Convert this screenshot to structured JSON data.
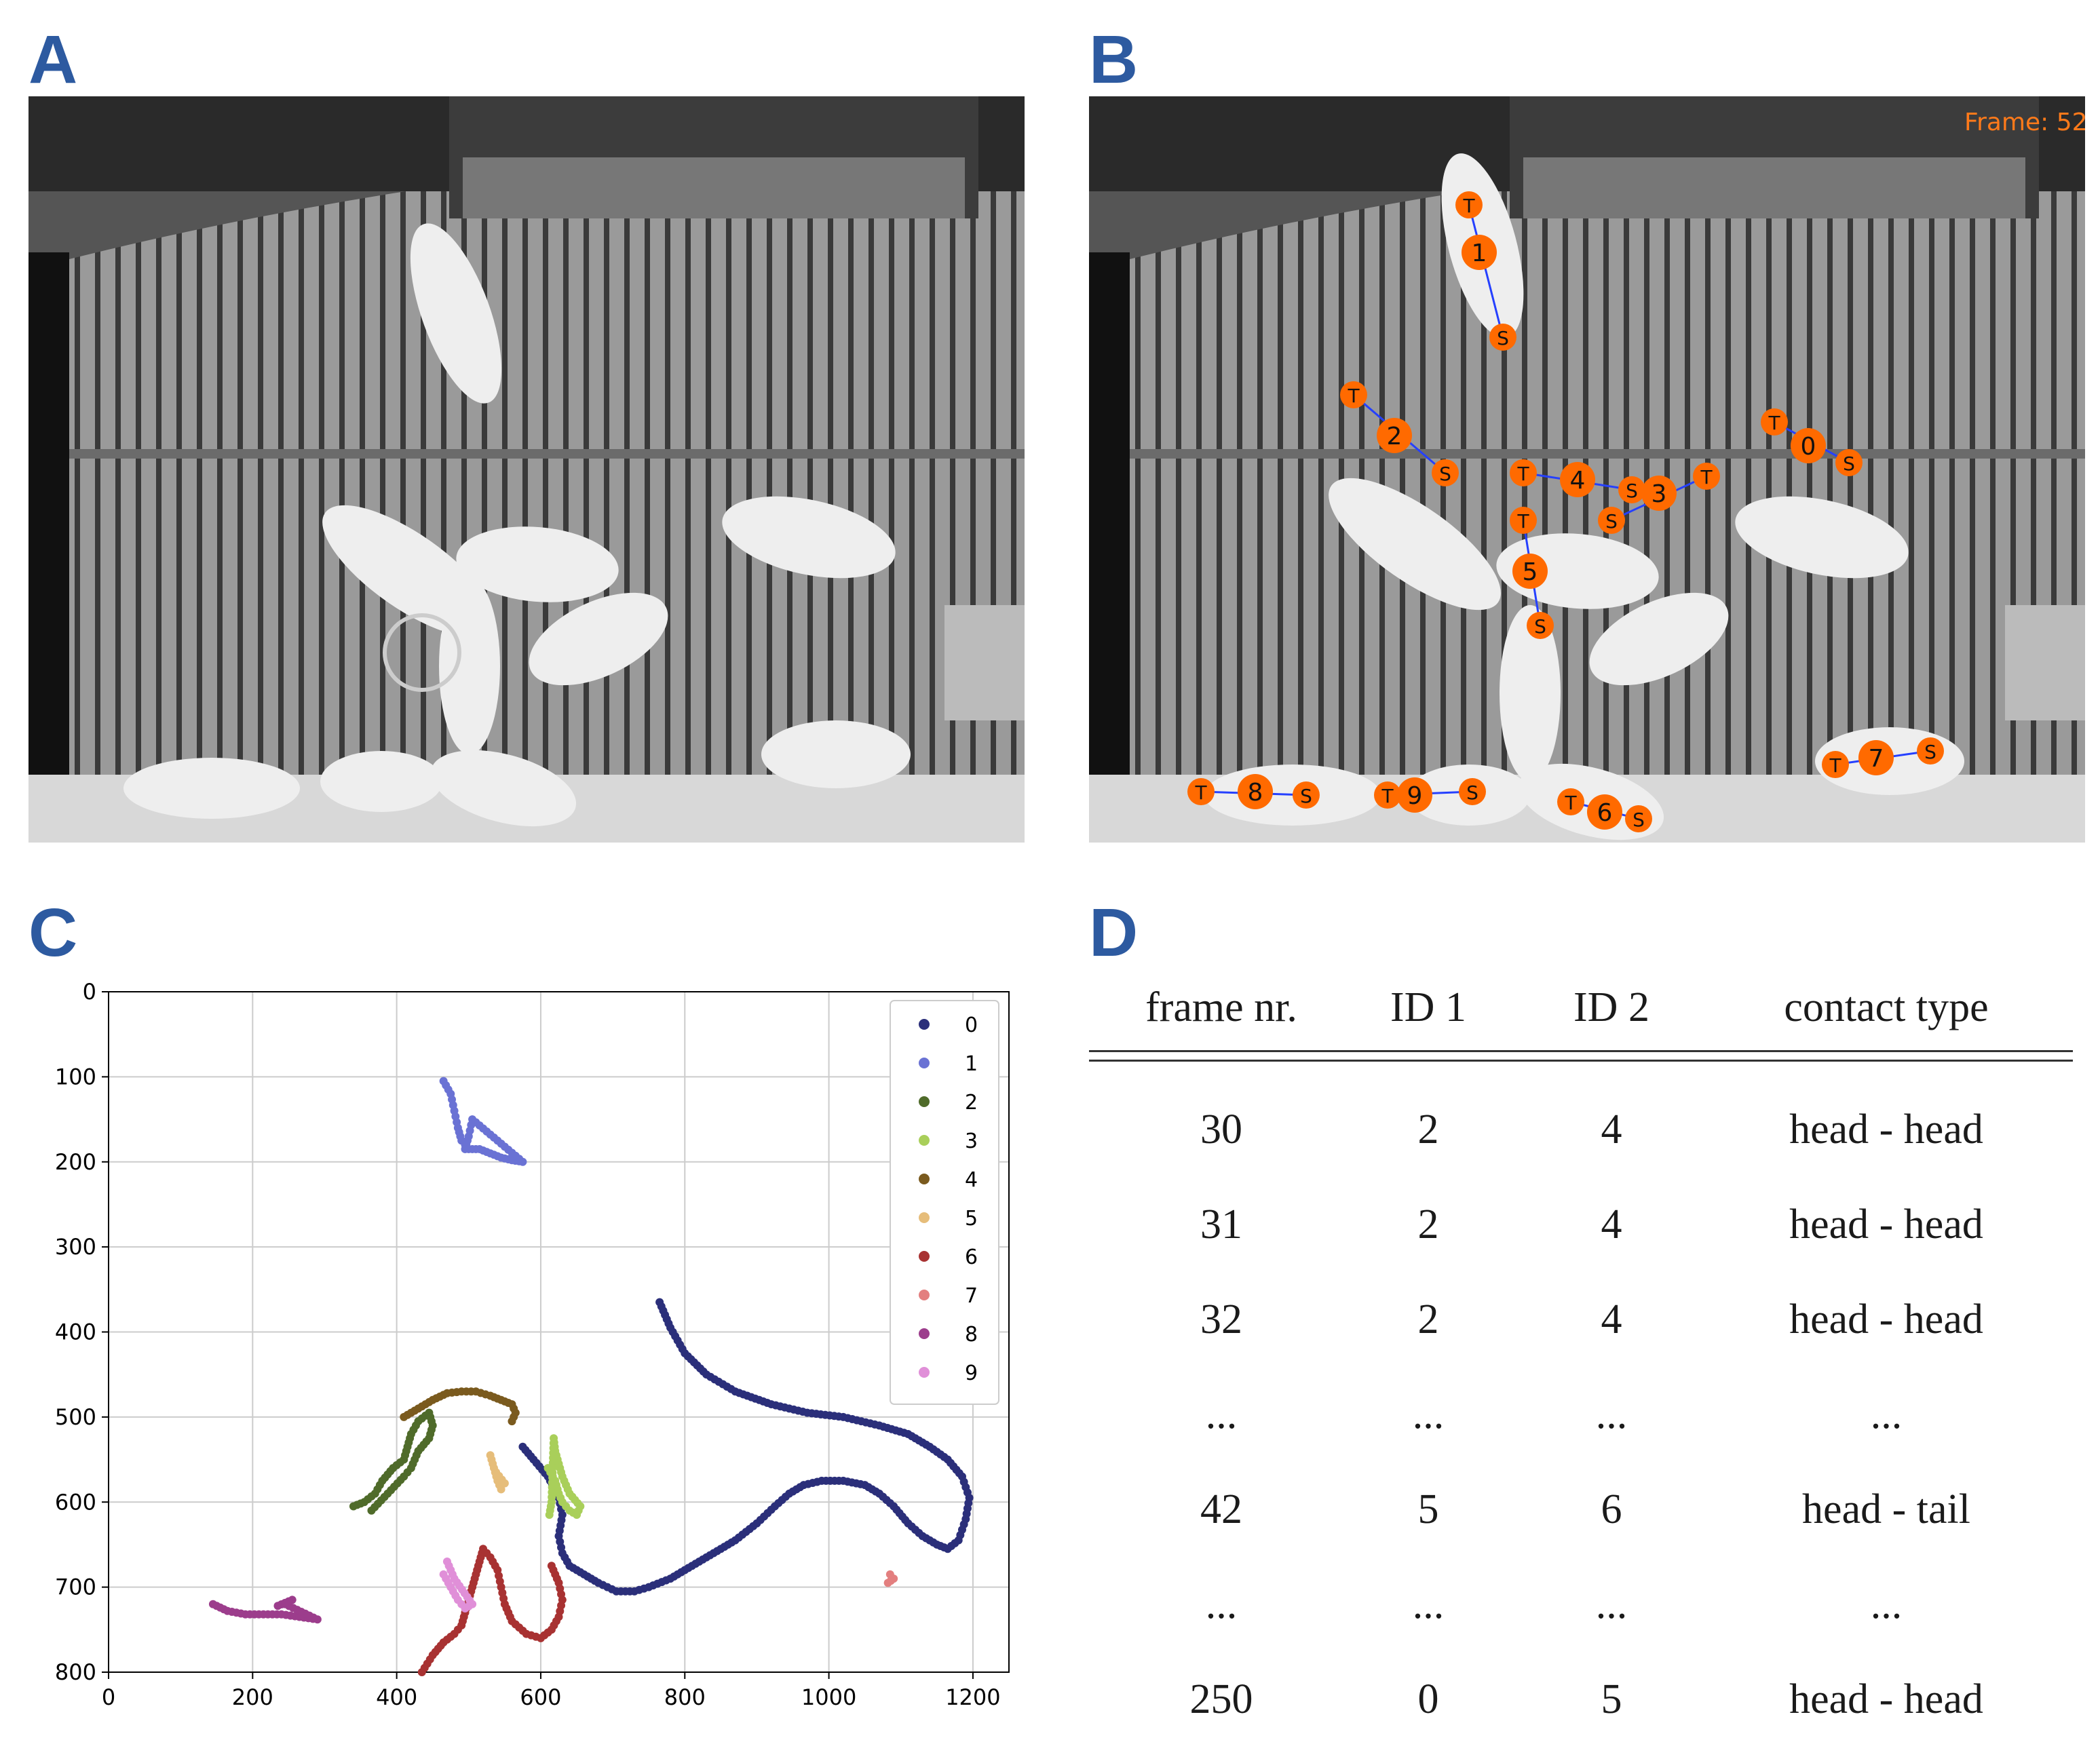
{
  "panels": {
    "a": {
      "label": "A"
    },
    "b": {
      "label": "B",
      "frame_text": "Frame: 52"
    },
    "c": {
      "label": "C"
    },
    "d": {
      "label": "D"
    }
  },
  "pigs_b": [
    {
      "id": "1",
      "s": "S",
      "t": "T"
    },
    {
      "id": "2",
      "s": "S",
      "t": "T"
    },
    {
      "id": "0",
      "s": "S",
      "t": "T"
    },
    {
      "id": "4",
      "s": "S",
      "t": "T"
    },
    {
      "id": "3",
      "s": "S",
      "t": "T"
    },
    {
      "id": "5",
      "s": "S",
      "t": "T"
    },
    {
      "id": "8",
      "s": "S",
      "t": "T"
    },
    {
      "id": "9",
      "s": "S",
      "t": "T"
    },
    {
      "id": "6",
      "s": "S",
      "t": "T"
    },
    {
      "id": "7",
      "s": "S",
      "t": "T"
    }
  ],
  "chart_data": {
    "type": "scatter",
    "xlim": [
      0,
      1250
    ],
    "ylim": [
      800,
      0
    ],
    "xticks": [
      "0",
      "200",
      "400",
      "600",
      "800",
      "1000",
      "1200"
    ],
    "yticks": [
      "0",
      "100",
      "200",
      "300",
      "400",
      "500",
      "600",
      "700",
      "800"
    ],
    "grid": true,
    "legend_position": "top-right",
    "series": [
      {
        "name": "0",
        "color": "#2b2f7a",
        "points": [
          [
            765,
            365
          ],
          [
            780,
            395
          ],
          [
            800,
            425
          ],
          [
            830,
            450
          ],
          [
            870,
            470
          ],
          [
            920,
            485
          ],
          [
            970,
            495
          ],
          [
            1020,
            500
          ],
          [
            1070,
            510
          ],
          [
            1110,
            520
          ],
          [
            1140,
            535
          ],
          [
            1165,
            550
          ],
          [
            1185,
            570
          ],
          [
            1195,
            595
          ],
          [
            1190,
            620
          ],
          [
            1180,
            645
          ],
          [
            1165,
            655
          ],
          [
            1150,
            650
          ],
          [
            1130,
            640
          ],
          [
            1110,
            625
          ],
          [
            1090,
            605
          ],
          [
            1070,
            590
          ],
          [
            1050,
            580
          ],
          [
            1020,
            575
          ],
          [
            990,
            575
          ],
          [
            965,
            580
          ],
          [
            945,
            590
          ],
          [
            925,
            605
          ],
          [
            900,
            625
          ],
          [
            870,
            645
          ],
          [
            840,
            660
          ],
          [
            810,
            675
          ],
          [
            780,
            690
          ],
          [
            750,
            700
          ],
          [
            730,
            705
          ],
          [
            705,
            705
          ],
          [
            680,
            695
          ],
          [
            660,
            685
          ],
          [
            640,
            675
          ],
          [
            630,
            660
          ],
          [
            625,
            640
          ],
          [
            630,
            615
          ],
          [
            625,
            595
          ],
          [
            610,
            570
          ],
          [
            590,
            550
          ],
          [
            575,
            535
          ]
        ]
      },
      {
        "name": "1",
        "color": "#6a72d4",
        "points": [
          [
            465,
            105
          ],
          [
            475,
            120
          ],
          [
            480,
            140
          ],
          [
            485,
            160
          ],
          [
            490,
            175
          ],
          [
            500,
            185
          ],
          [
            515,
            185
          ],
          [
            530,
            190
          ],
          [
            545,
            195
          ],
          [
            560,
            198
          ],
          [
            575,
            200
          ],
          [
            505,
            150
          ],
          [
            500,
            170
          ],
          [
            495,
            185
          ]
        ]
      },
      {
        "name": "2",
        "color": "#4f6b2a",
        "points": [
          [
            340,
            605
          ],
          [
            355,
            600
          ],
          [
            370,
            590
          ],
          [
            380,
            575
          ],
          [
            395,
            560
          ],
          [
            410,
            550
          ],
          [
            415,
            535
          ],
          [
            420,
            520
          ],
          [
            430,
            505
          ],
          [
            445,
            495
          ],
          [
            450,
            510
          ],
          [
            445,
            525
          ],
          [
            430,
            540
          ],
          [
            420,
            560
          ],
          [
            410,
            570
          ],
          [
            365,
            610
          ]
        ]
      },
      {
        "name": "3",
        "color": "#a9cf5a",
        "points": [
          [
            610,
            560
          ],
          [
            620,
            575
          ],
          [
            625,
            590
          ],
          [
            630,
            600
          ],
          [
            640,
            610
          ],
          [
            650,
            615
          ],
          [
            655,
            605
          ],
          [
            640,
            590
          ],
          [
            630,
            570
          ],
          [
            625,
            555
          ],
          [
            620,
            540
          ],
          [
            618,
            525
          ],
          [
            615,
            600
          ],
          [
            612,
            615
          ]
        ]
      },
      {
        "name": "4",
        "color": "#7a5a1e",
        "points": [
          [
            410,
            500
          ],
          [
            430,
            490
          ],
          [
            450,
            480
          ],
          [
            470,
            472
          ],
          [
            490,
            470
          ],
          [
            510,
            470
          ],
          [
            530,
            475
          ],
          [
            545,
            480
          ],
          [
            560,
            485
          ],
          [
            565,
            495
          ],
          [
            560,
            505
          ]
        ]
      },
      {
        "name": "5",
        "color": "#e6bd7a",
        "points": [
          [
            530,
            545
          ],
          [
            535,
            560
          ],
          [
            540,
            575
          ],
          [
            545,
            585
          ],
          [
            550,
            578
          ],
          [
            538,
            565
          ]
        ]
      },
      {
        "name": "6",
        "color": "#a83232",
        "points": [
          [
            435,
            800
          ],
          [
            450,
            780
          ],
          [
            465,
            765
          ],
          [
            480,
            755
          ],
          [
            490,
            745
          ],
          [
            495,
            730
          ],
          [
            500,
            715
          ],
          [
            505,
            700
          ],
          [
            510,
            685
          ],
          [
            515,
            670
          ],
          [
            520,
            655
          ],
          [
            530,
            665
          ],
          [
            540,
            680
          ],
          [
            545,
            700
          ],
          [
            550,
            720
          ],
          [
            560,
            740
          ],
          [
            580,
            755
          ],
          [
            600,
            760
          ],
          [
            615,
            750
          ],
          [
            625,
            735
          ],
          [
            630,
            715
          ],
          [
            625,
            695
          ],
          [
            615,
            675
          ]
        ]
      },
      {
        "name": "7",
        "color": "#e37f7f",
        "points": [
          [
            1085,
            685
          ],
          [
            1090,
            690
          ],
          [
            1082,
            695
          ]
        ]
      },
      {
        "name": "8",
        "color": "#9c3d8c",
        "points": [
          [
            145,
            720
          ],
          [
            165,
            728
          ],
          [
            190,
            732
          ],
          [
            215,
            732
          ],
          [
            240,
            732
          ],
          [
            265,
            735
          ],
          [
            290,
            738
          ],
          [
            245,
            720
          ],
          [
            255,
            715
          ],
          [
            235,
            722
          ]
        ]
      },
      {
        "name": "9",
        "color": "#e08fd8",
        "points": [
          [
            465,
            685
          ],
          [
            475,
            700
          ],
          [
            485,
            715
          ],
          [
            495,
            725
          ],
          [
            505,
            720
          ],
          [
            480,
            690
          ],
          [
            470,
            670
          ]
        ]
      }
    ]
  },
  "table": {
    "headers": [
      "frame nr.",
      "ID 1",
      "ID 2",
      "contact type"
    ],
    "rows": [
      [
        "30",
        "2",
        "4",
        "head - head"
      ],
      [
        "31",
        "2",
        "4",
        "head - head"
      ],
      [
        "32",
        "2",
        "4",
        "head - head"
      ],
      [
        "...",
        "...",
        "...",
        "..."
      ],
      [
        "42",
        "5",
        "6",
        "head - tail"
      ],
      [
        "...",
        "...",
        "...",
        "..."
      ],
      [
        "250",
        "0",
        "5",
        "head - head"
      ]
    ]
  }
}
